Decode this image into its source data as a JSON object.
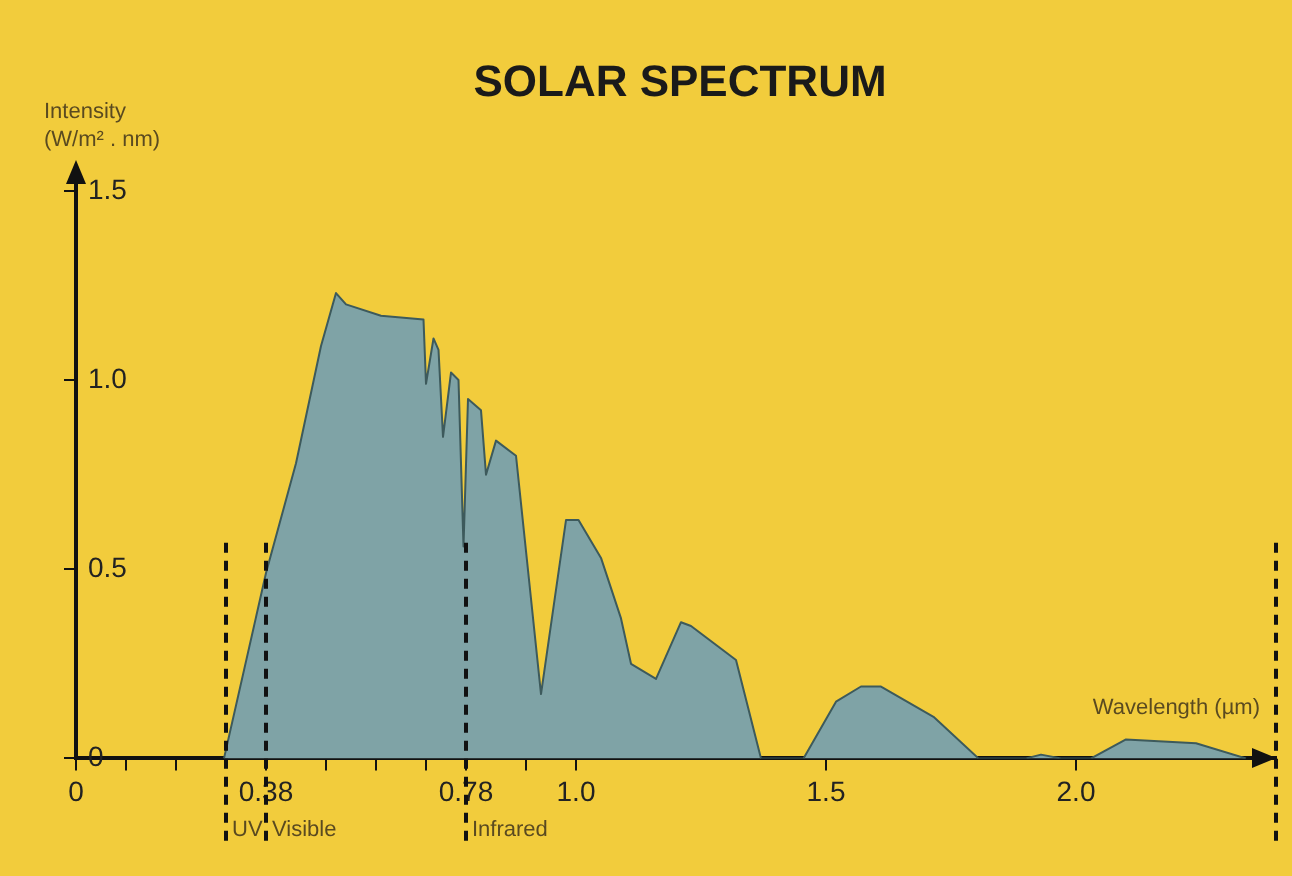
{
  "chart_data": {
    "type": "area",
    "title": "SOLAR SPECTRUM",
    "xlabel": "Wavelength (µm)",
    "ylabel": "Intensity (W/m² . nm)",
    "x": [
      0.296,
      0.38,
      0.44,
      0.49,
      0.52,
      0.54,
      0.61,
      0.695,
      0.7,
      0.715,
      0.725,
      0.734,
      0.75,
      0.765,
      0.775,
      0.784,
      0.81,
      0.82,
      0.84,
      0.88,
      0.93,
      0.98,
      1.005,
      1.05,
      1.09,
      1.11,
      1.16,
      1.21,
      1.23,
      1.32,
      1.37,
      1.455,
      1.52,
      1.57,
      1.61,
      1.715,
      1.805,
      1.9,
      1.93,
      1.97,
      2.03,
      2.1,
      2.24,
      2.34
    ],
    "series": [
      {
        "color": "#7fa3a6",
        "values": [
          0,
          0.49,
          0.78,
          1.09,
          1.23,
          1.2,
          1.17,
          1.16,
          0.99,
          1.11,
          1.08,
          0.85,
          1.02,
          1.0,
          0.56,
          0.95,
          0.92,
          0.75,
          0.84,
          0.8,
          0.17,
          0.63,
          0.63,
          0.53,
          0.37,
          0.25,
          0.21,
          0.36,
          0.35,
          0.26,
          0,
          0,
          0.15,
          0.19,
          0.19,
          0.11,
          0,
          0,
          0.01,
          0,
          0,
          0.05,
          0.04,
          0
        ]
      }
    ],
    "xlim": [
      0,
      2.4
    ],
    "ylim": [
      0,
      1.55
    ],
    "xticks": [
      0,
      {
        "value": 0.1,
        "label": null
      },
      {
        "value": 0.2,
        "label": null
      },
      {
        "value": 0.38,
        "label": "0.38"
      },
      {
        "value": 0.5,
        "label": null
      },
      {
        "value": 0.6,
        "label": null
      },
      {
        "value": 0.7,
        "label": null
      },
      {
        "value": 0.78,
        "label": "0.78"
      },
      {
        "value": 0.9,
        "label": null
      },
      {
        "value": 1.0,
        "label": "1.0"
      },
      1.5,
      {
        "value": 2.0,
        "label": "2.0"
      }
    ],
    "yticks": [
      0,
      0.5,
      {
        "value": 1.0,
        "label": "1.0"
      },
      1.5
    ],
    "ref_lines": [
      {
        "axis": "x",
        "value": 0.3,
        "label": "UV",
        "line_style": "dashed"
      },
      {
        "axis": "x",
        "value": 0.38,
        "label": "Visible",
        "line_style": "dashed"
      },
      {
        "axis": "x",
        "value": 0.78,
        "label": "Infrared",
        "line_style": "dashed"
      },
      {
        "axis": "x",
        "value": 2.4,
        "line_style": "dashed"
      }
    ],
    "grid": false,
    "legend": false
  }
}
